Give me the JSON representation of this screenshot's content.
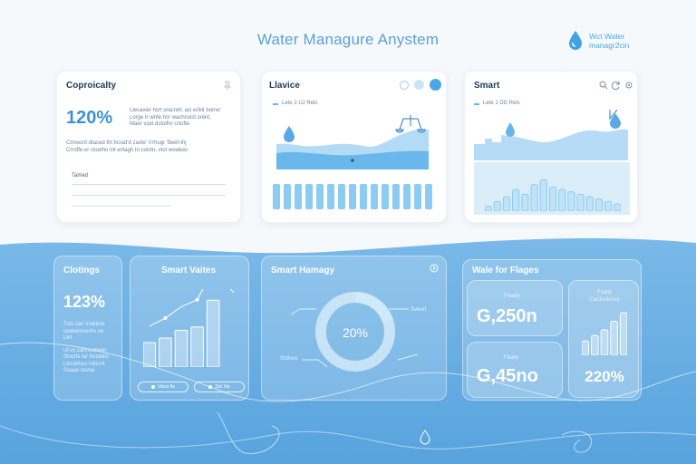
{
  "header": {
    "title": "Water Managure Anystem",
    "brand_line1": "Wct Water",
    "brand_line2": "managr2cin"
  },
  "cards": {
    "coproicalty": {
      "title": "Coproicalty",
      "stat": "120%",
      "desc_lines": [
        "Llecavier hcrt vracrett, aci erikit borrer",
        "Lorge tr wnfe hcr wachrsicit srent,",
        "Maer vzet dctolfnr crtufte"
      ],
      "body_lines": [
        "Clmwcrit dtaced tht Iicrad'd zaxte' n'rhugr 'Beef-thj",
        "Crroffe er cloetho tnt wrtagh tn coistn, vtot wowkes"
      ],
      "field_label": "Tamed"
    },
    "llavice": {
      "title": "Llavice",
      "legend": "Lete 2 UJ Rels"
    },
    "smart": {
      "title": "Smart",
      "legend": "Lete 1 DD Rels"
    },
    "clotings": {
      "title": "Clotings",
      "stat": "123%",
      "desc_lines": [
        "Tvls cart lrotkiner",
        "ceatanzeerhs ve",
        "Llvt",
        "Ul.vc carlnoatwon",
        "Stocrle lar hrodeks",
        "Llvcwthus inltcrnt",
        "Ssaue cevve"
      ]
    },
    "smart_values": {
      "title": "Smart Vaites",
      "pill1": "Vaiut lls",
      "pill2": "Sst hls"
    },
    "smart_hamagy": {
      "title": "Smart Hamagy",
      "center_value": "20%",
      "label_right": "Sveort",
      "label_left": "Stdlvos"
    },
    "water_flages": {
      "title": "Wale for Flages",
      "stat1_label": "Fhattly",
      "stat1": "G,250n",
      "stat2_label": "Fbatly",
      "stat2": "G,45no",
      "side_label1": "Fzaliy",
      "side_label2": "Carduniorics",
      "side_stat": "220%"
    }
  },
  "colors": {
    "accent": "#4a9de0",
    "wave_blue": "#5aa6e0",
    "light_blue": "#bfe0f7",
    "text_dark": "#1d3b57"
  },
  "chart_data": [
    {
      "type": "bar",
      "title": "Smart Vaites",
      "categories": [
        "1",
        "2",
        "3",
        "4",
        "5"
      ],
      "values": [
        22,
        26,
        33,
        36,
        60
      ],
      "ylim": [
        0,
        70
      ]
    },
    {
      "type": "pie",
      "title": "Smart Hamagy",
      "categories": [
        "filled",
        "rest"
      ],
      "values": [
        20,
        80
      ]
    },
    {
      "type": "bar",
      "title": "Llavice",
      "categories": [
        "1",
        "2",
        "3",
        "4",
        "5",
        "6",
        "7",
        "8",
        "9",
        "10",
        "11",
        "12",
        "13",
        "14",
        "15"
      ],
      "values": [
        28,
        28,
        28,
        28,
        28,
        28,
        28,
        28,
        28,
        28,
        28,
        28,
        28,
        28,
        28
      ],
      "ylim": [
        0,
        30
      ]
    },
    {
      "type": "bar",
      "title": "Smart",
      "categories": [
        "1",
        "2",
        "3",
        "4",
        "5",
        "6",
        "7",
        "8",
        "9",
        "10",
        "11",
        "12",
        "13",
        "14",
        "15"
      ],
      "values": [
        4,
        8,
        12,
        18,
        14,
        22,
        26,
        20,
        18,
        16,
        14,
        12,
        10,
        8,
        6
      ],
      "ylim": [
        0,
        30
      ]
    },
    {
      "type": "bar",
      "title": "Carduniorics",
      "categories": [
        "1",
        "2",
        "3",
        "4",
        "5"
      ],
      "values": [
        10,
        14,
        18,
        24,
        30
      ],
      "ylim": [
        0,
        32
      ]
    }
  ]
}
